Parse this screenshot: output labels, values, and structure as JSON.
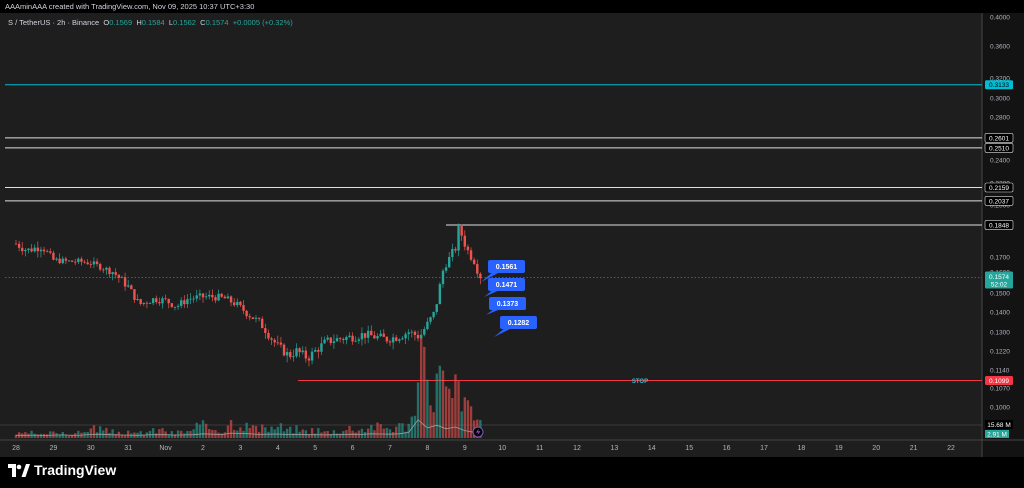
{
  "header": {
    "credit": "AAAminAAA created with TradingView.com, Nov 09, 2025 10:37 UTC+3:30"
  },
  "legend": {
    "symbol": "S / TetherUS · 2h · Binance",
    "o_label": "O",
    "o_value": "0.1569",
    "h_label": "H",
    "h_value": "0.1584",
    "l_label": "L",
    "l_value": "0.1562",
    "c_label": "C",
    "c_value": "0.1574",
    "change": "+0.0005 (+0.32%)"
  },
  "footer": {
    "brand": "TradingView"
  },
  "colors": {
    "up": "#26a69a",
    "down": "#ef5350",
    "cyan": "#00bcd4",
    "label_blue": "#2962ff",
    "stop": "#f23645",
    "white": "#ffffff"
  },
  "chart_data": {
    "type": "candlestick",
    "ylim": [
      0.095,
      0.41
    ],
    "y_ticks": [
      "0.4000",
      "0.3600",
      "0.3200",
      "0.3000",
      "0.2800",
      "0.2600",
      "0.2400",
      "0.2200",
      "0.2000",
      "0.1840",
      "0.1700",
      "0.1600",
      "0.1500",
      "0.1400",
      "0.1300",
      "0.1220",
      "0.1140",
      "0.1070",
      "0.1000"
    ],
    "x_tick_labels": [
      "28",
      "29",
      "30",
      "31",
      "Nov",
      "2",
      "3",
      "4",
      "5",
      "6",
      "7",
      "8",
      "9",
      "10",
      "11",
      "12",
      "13",
      "14",
      "15",
      "16",
      "17",
      "18",
      "19",
      "20",
      "21",
      "22"
    ],
    "levels": [
      {
        "value": 0.3133,
        "label": "0.3133",
        "style": "cyan"
      },
      {
        "value": 0.2601,
        "label": "0.2601",
        "style": "white"
      },
      {
        "value": 0.251,
        "label": "0.2510",
        "style": "white"
      },
      {
        "value": 0.2159,
        "label": "0.2159",
        "style": "white"
      },
      {
        "value": 0.2037,
        "label": "0.2037",
        "style": "white"
      },
      {
        "value": 0.1848,
        "label": "0.1848",
        "style": "white"
      },
      {
        "value": 0.1099,
        "label": "0.1099",
        "style": "stop",
        "text": "STOP"
      }
    ],
    "current_price": {
      "value": 0.1574,
      "label": "0.1574",
      "countdown": "52:02"
    },
    "targets": [
      "0.1561",
      "0.1471",
      "0.1373",
      "0.1282"
    ],
    "volume": {
      "label": "15.68 M",
      "ma_label": "2.91 M"
    },
    "price_path": [
      [
        0,
        0.176
      ],
      [
        0.3,
        0.173
      ],
      [
        0.7,
        0.175
      ],
      [
        1,
        0.168
      ],
      [
        1.4,
        0.167
      ],
      [
        1.7,
        0.167
      ],
      [
        2,
        0.166
      ],
      [
        2.3,
        0.163
      ],
      [
        2.6,
        0.16
      ],
      [
        3,
        0.153
      ],
      [
        3.3,
        0.144
      ],
      [
        3.7,
        0.147
      ],
      [
        4,
        0.146
      ],
      [
        4.3,
        0.143
      ],
      [
        4.6,
        0.147
      ],
      [
        5,
        0.148
      ],
      [
        5.3,
        0.148
      ],
      [
        5.6,
        0.147
      ],
      [
        5.9,
        0.144
      ],
      [
        6.2,
        0.139
      ],
      [
        6.5,
        0.135
      ],
      [
        6.8,
        0.128
      ],
      [
        7,
        0.124
      ],
      [
        7.3,
        0.12
      ],
      [
        7.5,
        0.122
      ],
      [
        7.8,
        0.119
      ],
      [
        8,
        0.122
      ],
      [
        8.3,
        0.126
      ],
      [
        8.6,
        0.127
      ],
      [
        9,
        0.128
      ],
      [
        9.3,
        0.129
      ],
      [
        9.6,
        0.128
      ],
      [
        9.9,
        0.127
      ],
      [
        10.2,
        0.128
      ],
      [
        10.5,
        0.13
      ],
      [
        10.8,
        0.128
      ],
      [
        11,
        0.134
      ],
      [
        11.2,
        0.14
      ],
      [
        11.4,
        0.16
      ],
      [
        11.6,
        0.17
      ],
      [
        11.75,
        0.174
      ],
      [
        11.85,
        0.184
      ],
      [
        11.95,
        0.178
      ],
      [
        12.1,
        0.172
      ],
      [
        12.25,
        0.167
      ],
      [
        12.35,
        0.16
      ],
      [
        12.45,
        0.157
      ]
    ],
    "volume_path": [
      0.04,
      0.05,
      0.03,
      0.05,
      0.06,
      0.04,
      0.05,
      0.09,
      0.1,
      0.07,
      0.06,
      0.05,
      0.04,
      0.06,
      0.07,
      0.08,
      0.05,
      0.06,
      0.07,
      0.12,
      0.1,
      0.08,
      0.16,
      0.14,
      0.12,
      0.09,
      0.1,
      0.11,
      0.08,
      0.09,
      0.07,
      0.08,
      0.06,
      0.07,
      0.08,
      0.1,
      0.09,
      0.12,
      0.11,
      0.1,
      0.12,
      0.2,
      0.9,
      0.45,
      0.6,
      0.4,
      0.5,
      0.3,
      0.2,
      0.15
    ]
  }
}
